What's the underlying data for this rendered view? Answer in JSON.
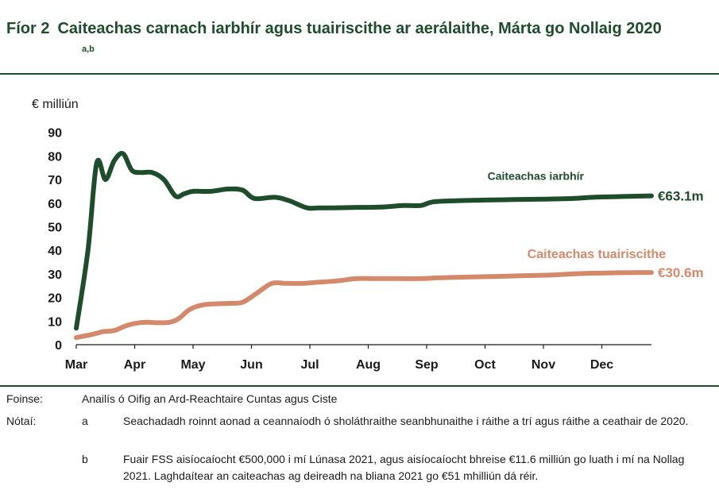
{
  "header": {
    "fig_num": "Fíor 2",
    "title": "Caiteachas carnach iarbhír agus tuairiscithe ar aerálaithe, Márta go Nollaig 2020",
    "superscript": "a,b"
  },
  "chart_data": {
    "type": "line",
    "title": "Caiteachas carnach iarbhír agus tuairiscithe ar aerálaithe, Márta go Nollaig 2020",
    "ylabel": "€ milliún",
    "xlabel": "",
    "ylim": [
      0,
      90
    ],
    "yticks": [
      0,
      10,
      20,
      30,
      40,
      50,
      60,
      70,
      80,
      90
    ],
    "xlim": [
      0,
      9.85
    ],
    "categories": [
      "Mar",
      "Apr",
      "May",
      "Jun",
      "Jul",
      "Aug",
      "Sep",
      "Oct",
      "Nov",
      "Dec"
    ],
    "grid": false,
    "series": [
      {
        "name": "Caiteachas iarbhír",
        "color": "#1e4d2b",
        "end_label": "€63.1m",
        "x": [
          0,
          0.2,
          0.35,
          0.5,
          0.65,
          0.8,
          0.95,
          1.1,
          1.3,
          1.5,
          1.7,
          1.85,
          2.0,
          2.3,
          2.6,
          2.85,
          3.05,
          3.4,
          3.65,
          3.95,
          4.15,
          4.4,
          4.8,
          5.2,
          5.6,
          5.9,
          6.1,
          6.5,
          7.0,
          7.5,
          8.0,
          8.5,
          8.85,
          9.3,
          9.85
        ],
        "y": [
          7,
          40,
          77,
          70,
          78,
          81,
          74,
          73,
          73,
          70,
          63,
          64,
          65,
          65,
          66,
          65.5,
          62,
          62.5,
          61,
          58,
          58,
          58,
          58.2,
          58.3,
          59,
          59,
          60.5,
          61,
          61.3,
          61.5,
          61.7,
          62,
          62.5,
          62.8,
          63.1
        ]
      },
      {
        "name": "Caiteachas tuairiscithe",
        "color": "#d4896b",
        "end_label": "€30.6m",
        "x": [
          0,
          0.3,
          0.45,
          0.65,
          0.85,
          1.0,
          1.2,
          1.4,
          1.6,
          1.75,
          1.95,
          2.2,
          2.6,
          2.85,
          3.1,
          3.35,
          3.6,
          3.9,
          4.15,
          4.45,
          4.8,
          5.1,
          5.5,
          5.9,
          6.15,
          6.4,
          6.9,
          7.3,
          7.7,
          8.1,
          8.5,
          8.85,
          9.3,
          9.85
        ],
        "y": [
          3,
          4.5,
          5.5,
          6,
          8,
          9,
          9.5,
          9.3,
          9.5,
          11,
          15,
          17,
          17.5,
          18,
          22,
          26,
          26,
          26,
          26.5,
          27,
          28,
          28,
          28,
          28,
          28.3,
          28.5,
          28.8,
          29,
          29.3,
          29.5,
          30,
          30.3,
          30.5,
          30.6
        ]
      }
    ],
    "annotations": [
      {
        "text": "Caiteachas iarbhír",
        "series": 0
      },
      {
        "text": "Caiteachas tuairiscithe",
        "series": 1
      }
    ]
  },
  "notes": {
    "source_label": "Foinse:",
    "source_text": "Anailís ó Oifig an Ard-Reachtaire Cuntas agus Ciste",
    "notes_label": "Nótaí:",
    "items": [
      {
        "key": "a",
        "text": "Seachadadh roinnt aonad a ceannaíodh ó sholáthraithe seanbhunaithe i ráithe a trí agus ráithe a ceathair de 2020."
      },
      {
        "key": "b",
        "text": "Fuair FSS aisíocaíocht €500,000 i mí Lúnasa 2021, agus aisíocaíocht bhreise €11.6 milliún go luath i mí na Nollag 2021.  Laghdaítear an caiteachas ag deireadh na bliana 2021 go €51 mhilliún dá réir."
      }
    ]
  }
}
